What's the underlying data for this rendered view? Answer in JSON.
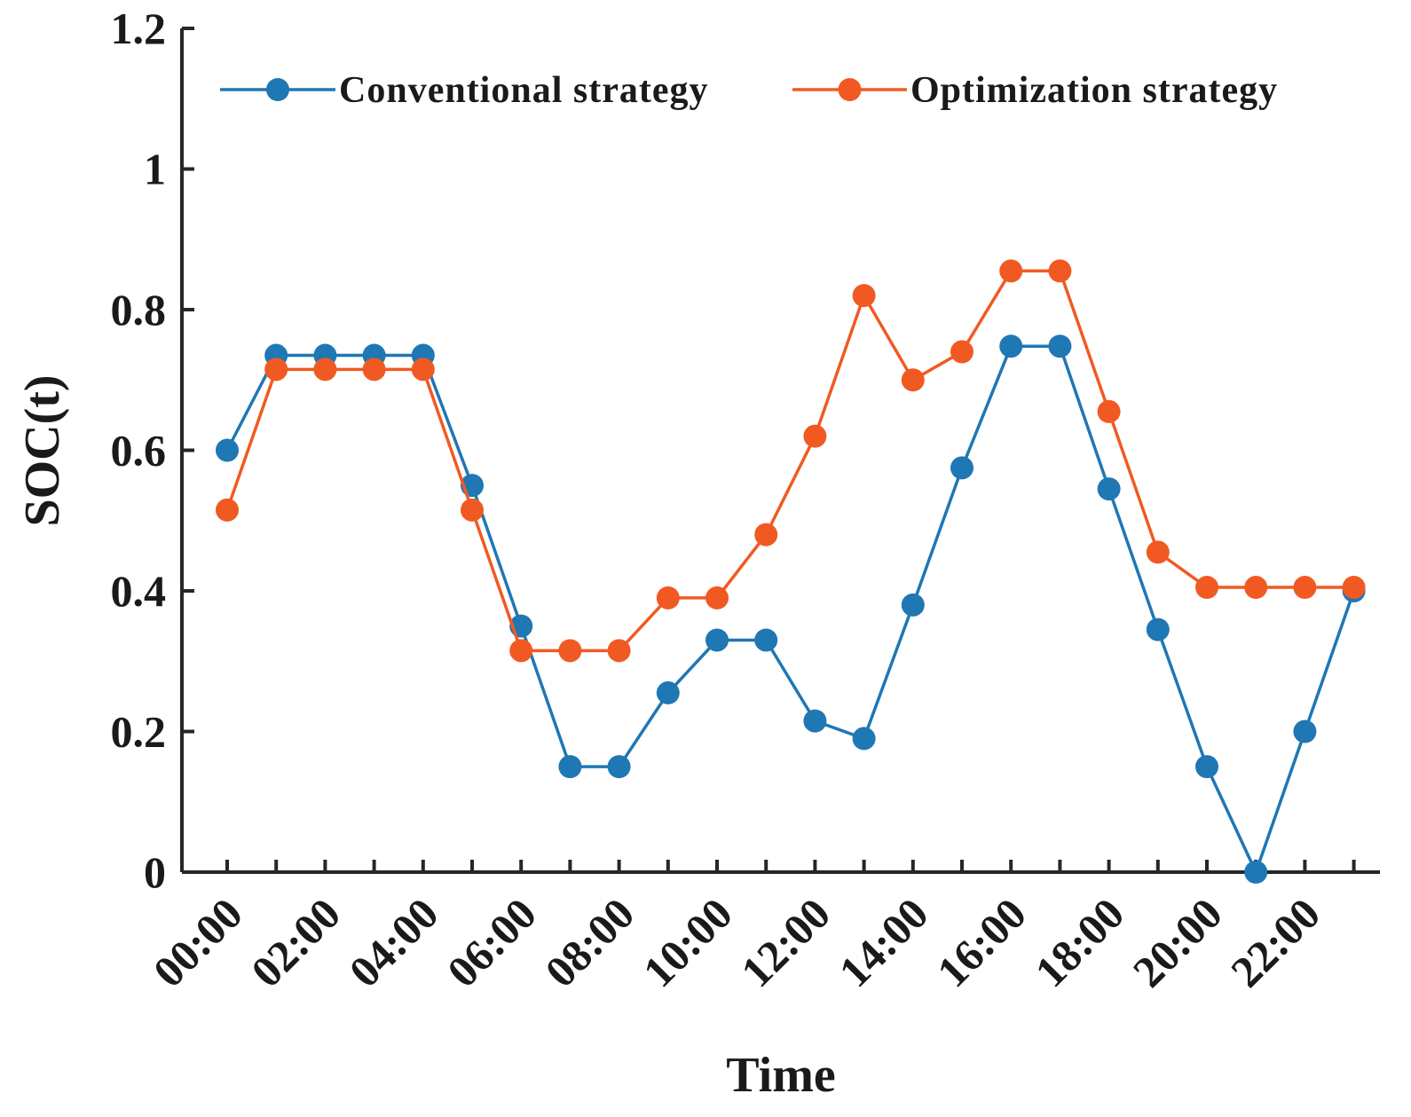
{
  "chart_data": {
    "type": "line",
    "title": "",
    "xlabel": "Time",
    "ylabel": "SOC(t)",
    "ylim": [
      0,
      1.2
    ],
    "yticks": [
      "0",
      "0.2",
      "0.4",
      "0.6",
      "0.8",
      "1",
      "1.2"
    ],
    "ytick_values": [
      0,
      0.2,
      0.4,
      0.6,
      0.8,
      1.0,
      1.2
    ],
    "xtick_labels": [
      "00:00",
      "02:00",
      "04:00",
      "06:00",
      "08:00",
      "10:00",
      "12:00",
      "14:00",
      "16:00",
      "18:00",
      "20:00",
      "22:00"
    ],
    "x": [
      0,
      1,
      2,
      3,
      4,
      5,
      6,
      7,
      8,
      9,
      10,
      11,
      12,
      13,
      14,
      15,
      16,
      17,
      18,
      19,
      20,
      21,
      22,
      23
    ],
    "legend_position": "top",
    "series": [
      {
        "name": "Conventional strategy",
        "color": "#1f77b4",
        "values": [
          0.6,
          0.735,
          0.735,
          0.735,
          0.735,
          0.55,
          0.35,
          0.15,
          0.15,
          0.255,
          0.33,
          0.33,
          0.215,
          0.19,
          0.38,
          0.575,
          0.748,
          0.748,
          0.545,
          0.345,
          0.15,
          0.0,
          0.2,
          0.4
        ]
      },
      {
        "name": "Optimization strategy",
        "color": "#f05a22",
        "values": [
          0.515,
          0.715,
          0.715,
          0.715,
          0.715,
          0.515,
          0.315,
          0.315,
          0.315,
          0.39,
          0.39,
          0.48,
          0.62,
          0.82,
          0.7,
          0.74,
          0.855,
          0.855,
          0.655,
          0.455,
          0.405,
          0.405,
          0.405,
          0.405
        ]
      }
    ]
  }
}
